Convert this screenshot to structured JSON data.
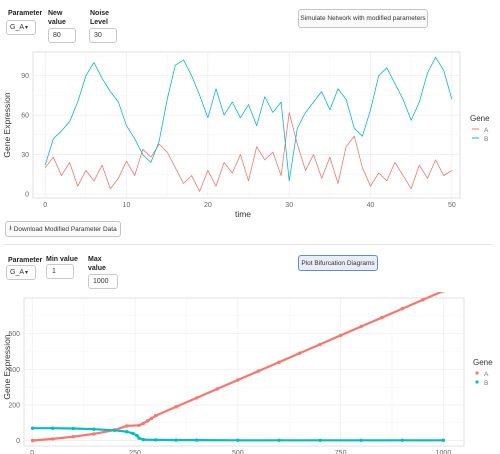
{
  "sim_controls": {
    "parameter_label": "Parameter",
    "parameter_value": "G_A",
    "new_value_label": "New value",
    "new_value": "80",
    "noise_label": "Noise Level",
    "noise_value": "30",
    "simulate_button": "Simulate Network with modified parameters"
  },
  "download_button": "Download Modified Parameter Data",
  "bif_controls": {
    "parameter_label": "Parameter",
    "parameter_value": "G_A",
    "min_label": "Min value",
    "min_value": "1",
    "max_label": "Max value",
    "max_value": "1000",
    "plot_button": "Plot Bifurcation Diagrams"
  },
  "chart_data": [
    {
      "type": "line",
      "xlabel": "time",
      "ylabel": "Gene Expression",
      "xlim": [
        -1.5,
        51
      ],
      "ylim": [
        -3,
        108
      ],
      "xticks": [
        0,
        10,
        20,
        30,
        40,
        50
      ],
      "yticks": [
        0,
        30,
        60,
        90
      ],
      "grid": true,
      "legend": {
        "title": "Gene",
        "placement": "right"
      },
      "series": [
        {
          "name": "A",
          "color": "#f8766d",
          "x": [
            0,
            1,
            2,
            3,
            4,
            5,
            6,
            7,
            8,
            9,
            10,
            11,
            12,
            13,
            14,
            15,
            16,
            17,
            18,
            19,
            20,
            21,
            22,
            23,
            24,
            25,
            26,
            27,
            28,
            29,
            30,
            31,
            32,
            33,
            34,
            35,
            36,
            37,
            38,
            39,
            40,
            41,
            42,
            43,
            44,
            45,
            46,
            47,
            48,
            49,
            50
          ],
          "y": [
            20,
            28,
            14,
            24,
            6,
            18,
            10,
            22,
            4,
            12,
            25,
            14,
            34,
            28,
            38,
            32,
            20,
            8,
            14,
            2,
            18,
            6,
            24,
            16,
            30,
            10,
            36,
            26,
            32,
            14,
            62,
            38,
            18,
            30,
            12,
            28,
            8,
            36,
            44,
            20,
            6,
            16,
            10,
            24,
            14,
            4,
            22,
            12,
            26,
            14,
            18
          ]
        },
        {
          "name": "B",
          "color": "#00bfc4",
          "x": [
            0,
            1,
            2,
            3,
            4,
            5,
            6,
            7,
            8,
            9,
            10,
            11,
            12,
            13,
            14,
            15,
            16,
            17,
            18,
            19,
            20,
            21,
            22,
            23,
            24,
            25,
            26,
            27,
            28,
            29,
            30,
            31,
            32,
            33,
            34,
            35,
            36,
            37,
            38,
            39,
            40,
            41,
            42,
            43,
            44,
            45,
            46,
            47,
            48,
            49,
            50
          ],
          "y": [
            22,
            42,
            48,
            55,
            70,
            90,
            100,
            88,
            78,
            70,
            52,
            42,
            30,
            24,
            40,
            72,
            98,
            102,
            90,
            75,
            58,
            80,
            60,
            70,
            58,
            68,
            52,
            74,
            62,
            70,
            10,
            50,
            62,
            70,
            78,
            64,
            80,
            72,
            50,
            44,
            64,
            90,
            96,
            84,
            72,
            56,
            70,
            92,
            104,
            94,
            72
          ]
        }
      ]
    },
    {
      "type": "scatter",
      "xlabel": "",
      "ylabel": "Gene Expression",
      "xlim": [
        -20,
        1050
      ],
      "ylim": [
        -30,
        800
      ],
      "xticks": [
        0,
        250,
        500,
        750,
        1000
      ],
      "yticks": [
        0,
        200,
        400,
        600
      ],
      "grid": true,
      "legend": {
        "title": "Gene",
        "placement": "right"
      },
      "series": [
        {
          "name": "A",
          "color": "#f8766d",
          "x": [
            1,
            50,
            100,
            150,
            200,
            230,
            260,
            270,
            280,
            290,
            300,
            350,
            400,
            450,
            500,
            550,
            600,
            650,
            700,
            750,
            800,
            850,
            900,
            950,
            1000
          ],
          "y": [
            1,
            10,
            22,
            38,
            60,
            83,
            86,
            96,
            110,
            125,
            140,
            190,
            240,
            290,
            340,
            390,
            440,
            490,
            540,
            590,
            640,
            690,
            740,
            790,
            840
          ]
        },
        {
          "name": "B",
          "color": "#00bfc4",
          "x": [
            1,
            50,
            100,
            150,
            200,
            230,
            245,
            255,
            260,
            270,
            300,
            350,
            400,
            500,
            600,
            700,
            800,
            900,
            1000
          ],
          "y": [
            70,
            70,
            68,
            64,
            58,
            50,
            40,
            28,
            14,
            6,
            4,
            3,
            3,
            2,
            2,
            2,
            2,
            2,
            2
          ]
        }
      ]
    }
  ]
}
